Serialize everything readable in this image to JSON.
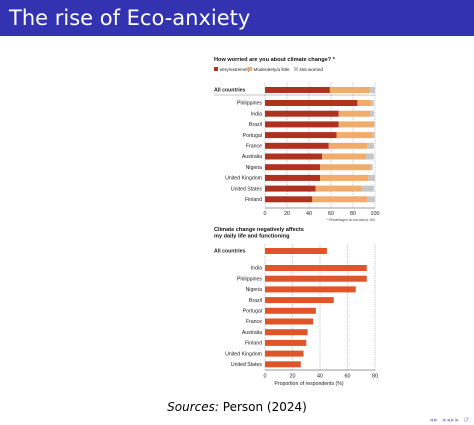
{
  "slide": {
    "title": "The rise of Eco-anxiety",
    "source_label": "Sources:",
    "source_text": "Person (2024)",
    "nav_icons": [
      "nav-first-icon",
      "nav-prev-icon",
      "nav-section-icon",
      "nav-next-icon",
      "nav-last-icon"
    ],
    "colors": {
      "title_bar": "#3333b2",
      "very": "#b0311f",
      "moderate": "#f0ac6a",
      "not": "#c6c6c6",
      "bar2": "#e0542a"
    }
  },
  "chart_data": [
    {
      "type": "bar",
      "orientation": "horizontal",
      "stacked": true,
      "title": "How worried are you about climate change? *",
      "note": "* Percentages do not add to 100",
      "categories": [
        "All countries",
        "Philippines",
        "India",
        "Brazil",
        "Portugal",
        "France",
        "Australia",
        "Nigeria",
        "United Kingdom",
        "United States",
        "Finland"
      ],
      "series": [
        {
          "name": "Very/extremely",
          "color": "#b0311f",
          "values": [
            59,
            84,
            67,
            67,
            65,
            58,
            52,
            50,
            50,
            46,
            43
          ]
        },
        {
          "name": "Moderately/a little",
          "color": "#f0ac6a",
          "values": [
            36,
            13,
            28,
            32,
            33,
            35,
            40,
            46,
            44,
            42,
            50
          ]
        },
        {
          "name": "Not worried",
          "color": "#c6c6c6",
          "values": [
            5,
            2,
            4,
            1,
            2,
            6,
            7,
            2,
            6,
            11,
            7
          ]
        }
      ],
      "xticks": [
        0,
        20,
        40,
        60,
        80,
        100
      ],
      "xlim": [
        0,
        100
      ],
      "legend": "top",
      "grid": "dashed vertical"
    },
    {
      "type": "bar",
      "orientation": "horizontal",
      "title": "Climate change negatively affects my daily life and functioning",
      "categories": [
        "All countries",
        "India",
        "Philippines",
        "Nigeria",
        "Brazil",
        "Portugal",
        "France",
        "Australia",
        "Finland",
        "United Kingdom",
        "United States"
      ],
      "values": [
        45,
        74,
        74,
        66,
        50,
        37,
        35,
        31,
        30,
        28,
        26
      ],
      "color": "#e0542a",
      "xlabel": "Proportion of respondents (%)",
      "xticks": [
        0,
        20,
        40,
        60,
        80
      ],
      "xlim": [
        0,
        80
      ],
      "grid": "dashed vertical"
    }
  ]
}
